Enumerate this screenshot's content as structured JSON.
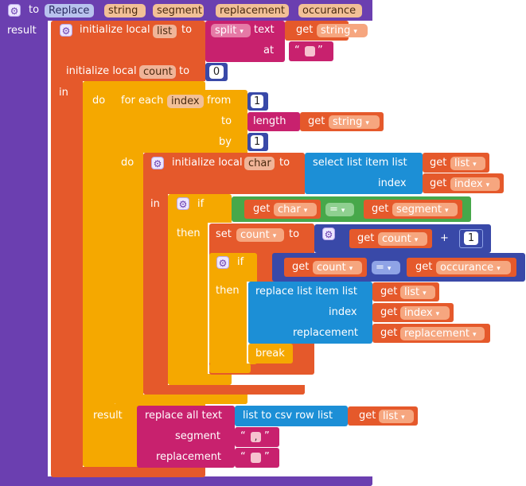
{
  "procedure": {
    "to_label": "to",
    "name": "Replace",
    "params": [
      "string",
      "segment",
      "replacement",
      "occurance"
    ],
    "result_label": "result"
  },
  "init_list": {
    "label": "initialize local",
    "var": "list",
    "to_label": "to",
    "split_label": "split",
    "text_label": "text",
    "at_label": "at",
    "get_label": "get",
    "get_var": "string"
  },
  "init_count": {
    "label": "initialize local",
    "var": "count",
    "to_label": "to",
    "value": "0",
    "in_label": "in",
    "do_label": "do"
  },
  "for_each": {
    "label": "for each",
    "var": "index",
    "from_label": "from",
    "from_value": "1",
    "to_label": "to",
    "length_label": "length",
    "get_label": "get",
    "get_var": "string",
    "by_label": "by",
    "by_value": "1",
    "do_label": "do"
  },
  "init_char": {
    "label": "initialize local",
    "var": "char",
    "to_label": "to",
    "select_label": "select list item",
    "list_label": "list",
    "index_label": "index",
    "get_label": "get",
    "get_list": "list",
    "get_index": "index",
    "in_label": "in"
  },
  "if1": {
    "if_label": "if",
    "then_label": "then",
    "get_label": "get",
    "left_var": "char",
    "op": "=",
    "right_var": "segment"
  },
  "set_count": {
    "set_label": "set",
    "var": "count",
    "to_label": "to",
    "get_label": "get",
    "get_var": "count",
    "plus": "+",
    "value": "1"
  },
  "if2": {
    "if_label": "if",
    "then_label": "then",
    "get_label": "get",
    "left_var": "count",
    "op": "=",
    "right_var": "occurance"
  },
  "replace_item": {
    "label": "replace list item",
    "list_label": "list",
    "index_label": "index",
    "replacement_label": "replacement",
    "get_label": "get",
    "get_list": "list",
    "get_index": "index",
    "get_replacement": "replacement",
    "break_label": "break"
  },
  "result2": {
    "result_label": "result",
    "replace_all_label": "replace all text",
    "segment_label": "segment",
    "replacement_label": "replacement",
    "csv_label": "list to csv row",
    "list_label": "list",
    "get_label": "get",
    "get_var": "list",
    "comma": ",",
    "open_quote": "“",
    "close_quote": "”"
  },
  "colors": {
    "procedure": "#6b3fb0",
    "variables": "#e5592b",
    "control": "#f5a800",
    "text": "#c8216e",
    "lists": "#1c8fd6",
    "math": "#3949a8",
    "logic": "#47a84a"
  }
}
